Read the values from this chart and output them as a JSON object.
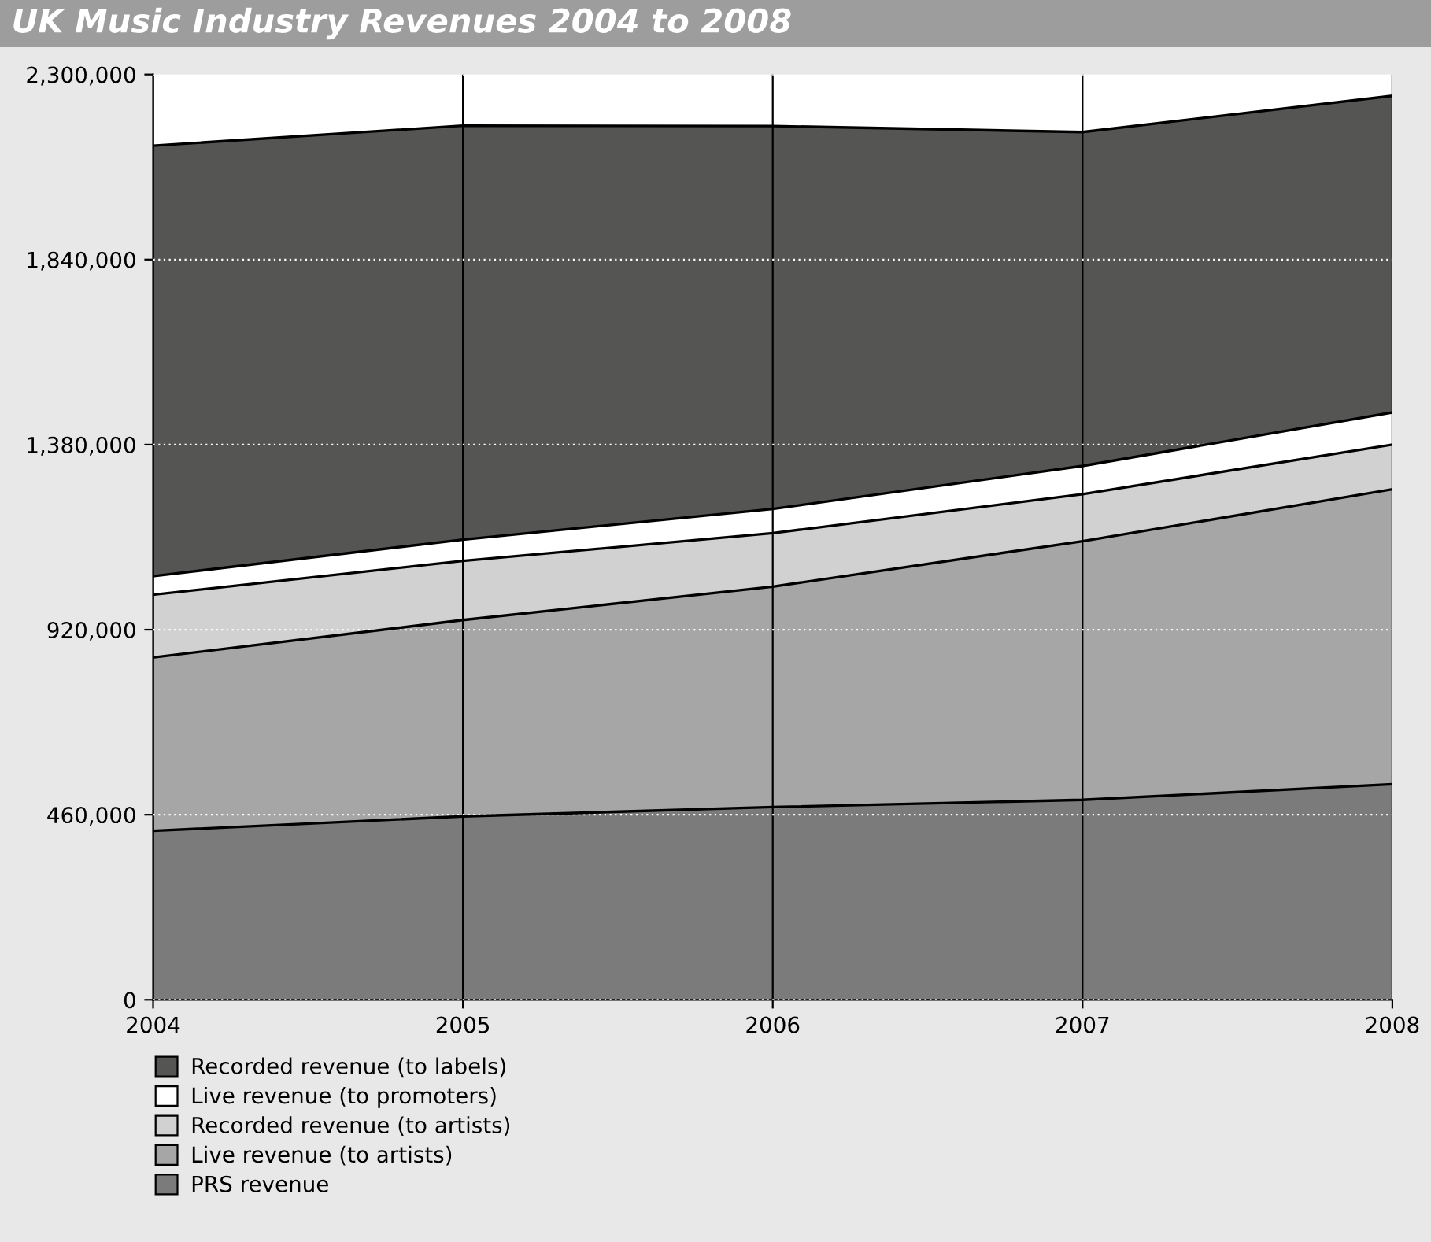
{
  "chart_data": {
    "type": "area",
    "stacked": true,
    "title": "UK Music Industry Revenues 2004 to 2008",
    "x": [
      2004,
      2005,
      2006,
      2007,
      2008
    ],
    "series": [
      {
        "name": "PRS revenue",
        "color": "#7b7b7b",
        "values": [
          420000,
          456000,
          479000,
          497000,
          536000
        ]
      },
      {
        "name": "Live revenue (to artists)",
        "color": "#a6a6a6",
        "values": [
          431000,
          488000,
          548000,
          643000,
          733000
        ]
      },
      {
        "name": "Recorded revenue (to artists)",
        "color": "#d0d1d0",
        "values": [
          156000,
          147000,
          133000,
          117000,
          111000
        ]
      },
      {
        "name": "Live revenue (to promoters)",
        "color": "#ffffff",
        "values": [
          46000,
          53000,
          60000,
          70000,
          80000
        ]
      },
      {
        "name": "Recorded revenue (to labels)",
        "color": "#555553",
        "values": [
          1070000,
          1029000,
          952000,
          830000,
          787000
        ]
      }
    ],
    "xlim": [
      2004,
      2008
    ],
    "xticks": [
      2004,
      2005,
      2006,
      2007,
      2008
    ],
    "ylim": [
      0,
      2300000
    ],
    "yticks": [
      {
        "value": 0,
        "label": "0"
      },
      {
        "value": 460000,
        "label": "460,000"
      },
      {
        "value": 920000,
        "label": "920,000"
      },
      {
        "value": 1380000,
        "label": "1,380,000"
      },
      {
        "value": 1840000,
        "label": "1,840,000"
      },
      {
        "value": 2300000,
        "label": "2,300,000"
      }
    ],
    "grid": true,
    "legend": "bottom left"
  }
}
